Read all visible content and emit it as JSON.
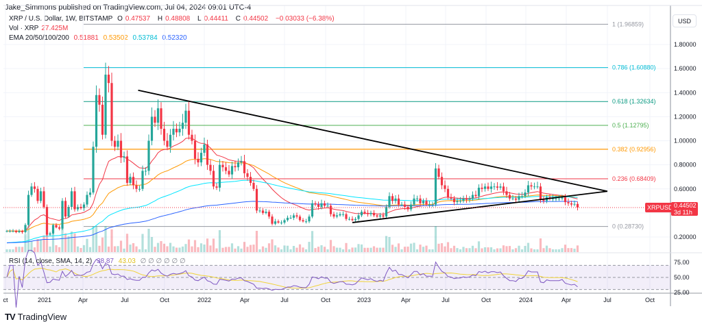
{
  "header": {
    "published": "Jake_Simmons published on TradingView.com, Jul 04, 2024 09:01 UTC-4"
  },
  "legend": {
    "symbol": "XRP / U.S. Dollar, 1W, BITSTAMP",
    "o_label": "O",
    "o": "0.47537",
    "h_label": "H",
    "h": "0.48808",
    "l_label": "L",
    "l": "0.44411",
    "c_label": "C",
    "c": "0.44502",
    "change": "−0.03033 (−6.38%)",
    "vol_label": "Vol · XRP",
    "vol": "27.425M",
    "ema_label": "EMA 20/50/100/200",
    "ema20": "0.51881",
    "ema50": "0.53502",
    "ema100": "0.53784",
    "ema200": "0.52320",
    "rsi_label": "RSI (14, close, SMA, 14, 2)",
    "rsi": "38.87",
    "rsi_ma": "43.03",
    "rsi_extra": "∅ ∅ ∅ ∅ ∅ ∅"
  },
  "price_axis": {
    "currency": "USD",
    "ticks": [
      "1.80000",
      "1.60000",
      "1.40000",
      "1.20000",
      "1.00000",
      "0.80000",
      "0.60000",
      "0.20000"
    ],
    "current_symbol": "XRPUSD",
    "current_price": "0.44502",
    "countdown": "3d 11h"
  },
  "rsi_axis": {
    "ticks": [
      "75.00",
      "50.00",
      "25.00"
    ]
  },
  "time_axis": {
    "ticks": [
      "ct",
      "2021",
      "Apr",
      "Jul",
      "Oct",
      "2022",
      "Apr",
      "Jul",
      "Oct",
      "2023",
      "Apr",
      "Jul",
      "Oct",
      "2024",
      "Apr",
      "Jul",
      "Oct"
    ]
  },
  "colors": {
    "up": "#26a69a",
    "down": "#f23645",
    "ema20": "#f23645",
    "ema50": "#ff9800",
    "ema100": "#00e5ff",
    "ema200": "#2962ff",
    "rsi": "#7e57c2",
    "rsi_ma": "#f0d33a"
  },
  "fib_levels": [
    {
      "label": "1 (1.96859)",
      "price": 1.96859,
      "color": "#9598a1"
    },
    {
      "label": "0.786 (1.60880)",
      "price": 1.6088,
      "color": "#00bcd4"
    },
    {
      "label": "0.618 (1.32634)",
      "price": 1.32634,
      "color": "#089981"
    },
    {
      "label": "0.5 (1.12795)",
      "price": 1.12795,
      "color": "#4caf50"
    },
    {
      "label": "0.382 (0.92956)",
      "price": 0.92956,
      "color": "#ff9800"
    },
    {
      "label": "0.236 (0.68409)",
      "price": 0.68409,
      "color": "#f23645"
    },
    {
      "label": "0 (0.28730)",
      "price": 0.2873,
      "color": "#9598a1"
    }
  ],
  "trendlines": [
    {
      "from": [
        "2021-08",
        1.42
      ],
      "to": [
        "2024-07",
        0.58
      ]
    },
    {
      "from": [
        "2022-12",
        0.32
      ],
      "to": [
        "2024-07",
        0.58
      ]
    }
  ],
  "chart_data": {
    "type": "candlestick",
    "title": "XRP / U.S. Dollar, 1W, BITSTAMP",
    "start": "2020-10",
    "interval": "1W",
    "ylim": [
      0.12,
      2.0
    ],
    "closes": [
      0.25,
      0.25,
      0.25,
      0.24,
      0.25,
      0.24,
      0.3,
      0.55,
      0.62,
      0.6,
      0.5,
      0.58,
      0.45,
      0.22,
      0.23,
      0.3,
      0.28,
      0.27,
      0.5,
      0.37,
      0.45,
      0.58,
      0.43,
      0.45,
      0.44,
      0.47,
      0.55,
      0.57,
      0.95,
      1.38,
      1.3,
      1.05,
      1.55,
      1.48,
      1.0,
      0.95,
      1.0,
      0.86,
      0.87,
      0.65,
      0.7,
      0.63,
      0.6,
      0.6,
      0.75,
      0.75,
      1.0,
      1.2,
      1.15,
      1.27,
      1.1,
      1.0,
      0.95,
      1.05,
      1.1,
      1.07,
      1.1,
      1.15,
      1.25,
      1.05,
      1.0,
      0.85,
      0.82,
      0.9,
      0.97,
      0.8,
      0.75,
      0.62,
      0.61,
      0.8,
      0.78,
      0.75,
      0.72,
      0.79,
      0.78,
      0.82,
      0.83,
      0.73,
      0.7,
      0.65,
      0.6,
      0.42,
      0.42,
      0.4,
      0.41,
      0.37,
      0.31,
      0.33,
      0.32,
      0.32,
      0.34,
      0.36,
      0.36,
      0.38,
      0.37,
      0.34,
      0.33,
      0.33,
      0.37,
      0.48,
      0.47,
      0.45,
      0.48,
      0.46,
      0.46,
      0.39,
      0.37,
      0.38,
      0.39,
      0.39,
      0.35,
      0.35,
      0.34,
      0.35,
      0.38,
      0.41,
      0.4,
      0.39,
      0.4,
      0.38,
      0.37,
      0.38,
      0.37,
      0.45,
      0.54,
      0.5,
      0.52,
      0.47,
      0.47,
      0.45,
      0.43,
      0.47,
      0.52,
      0.52,
      0.48,
      0.5,
      0.47,
      0.47,
      0.47,
      0.77,
      0.7,
      0.63,
      0.6,
      0.53,
      0.52,
      0.49,
      0.5,
      0.5,
      0.52,
      0.51,
      0.52,
      0.55,
      0.54,
      0.61,
      0.6,
      0.62,
      0.6,
      0.62,
      0.62,
      0.61,
      0.62,
      0.58,
      0.55,
      0.52,
      0.52,
      0.51,
      0.54,
      0.54,
      0.57,
      0.63,
      0.62,
      0.62,
      0.62,
      0.51,
      0.5,
      0.53,
      0.52,
      0.52,
      0.52,
      0.52,
      0.53,
      0.49,
      0.48,
      0.47,
      0.475,
      0.445
    ]
  }
}
